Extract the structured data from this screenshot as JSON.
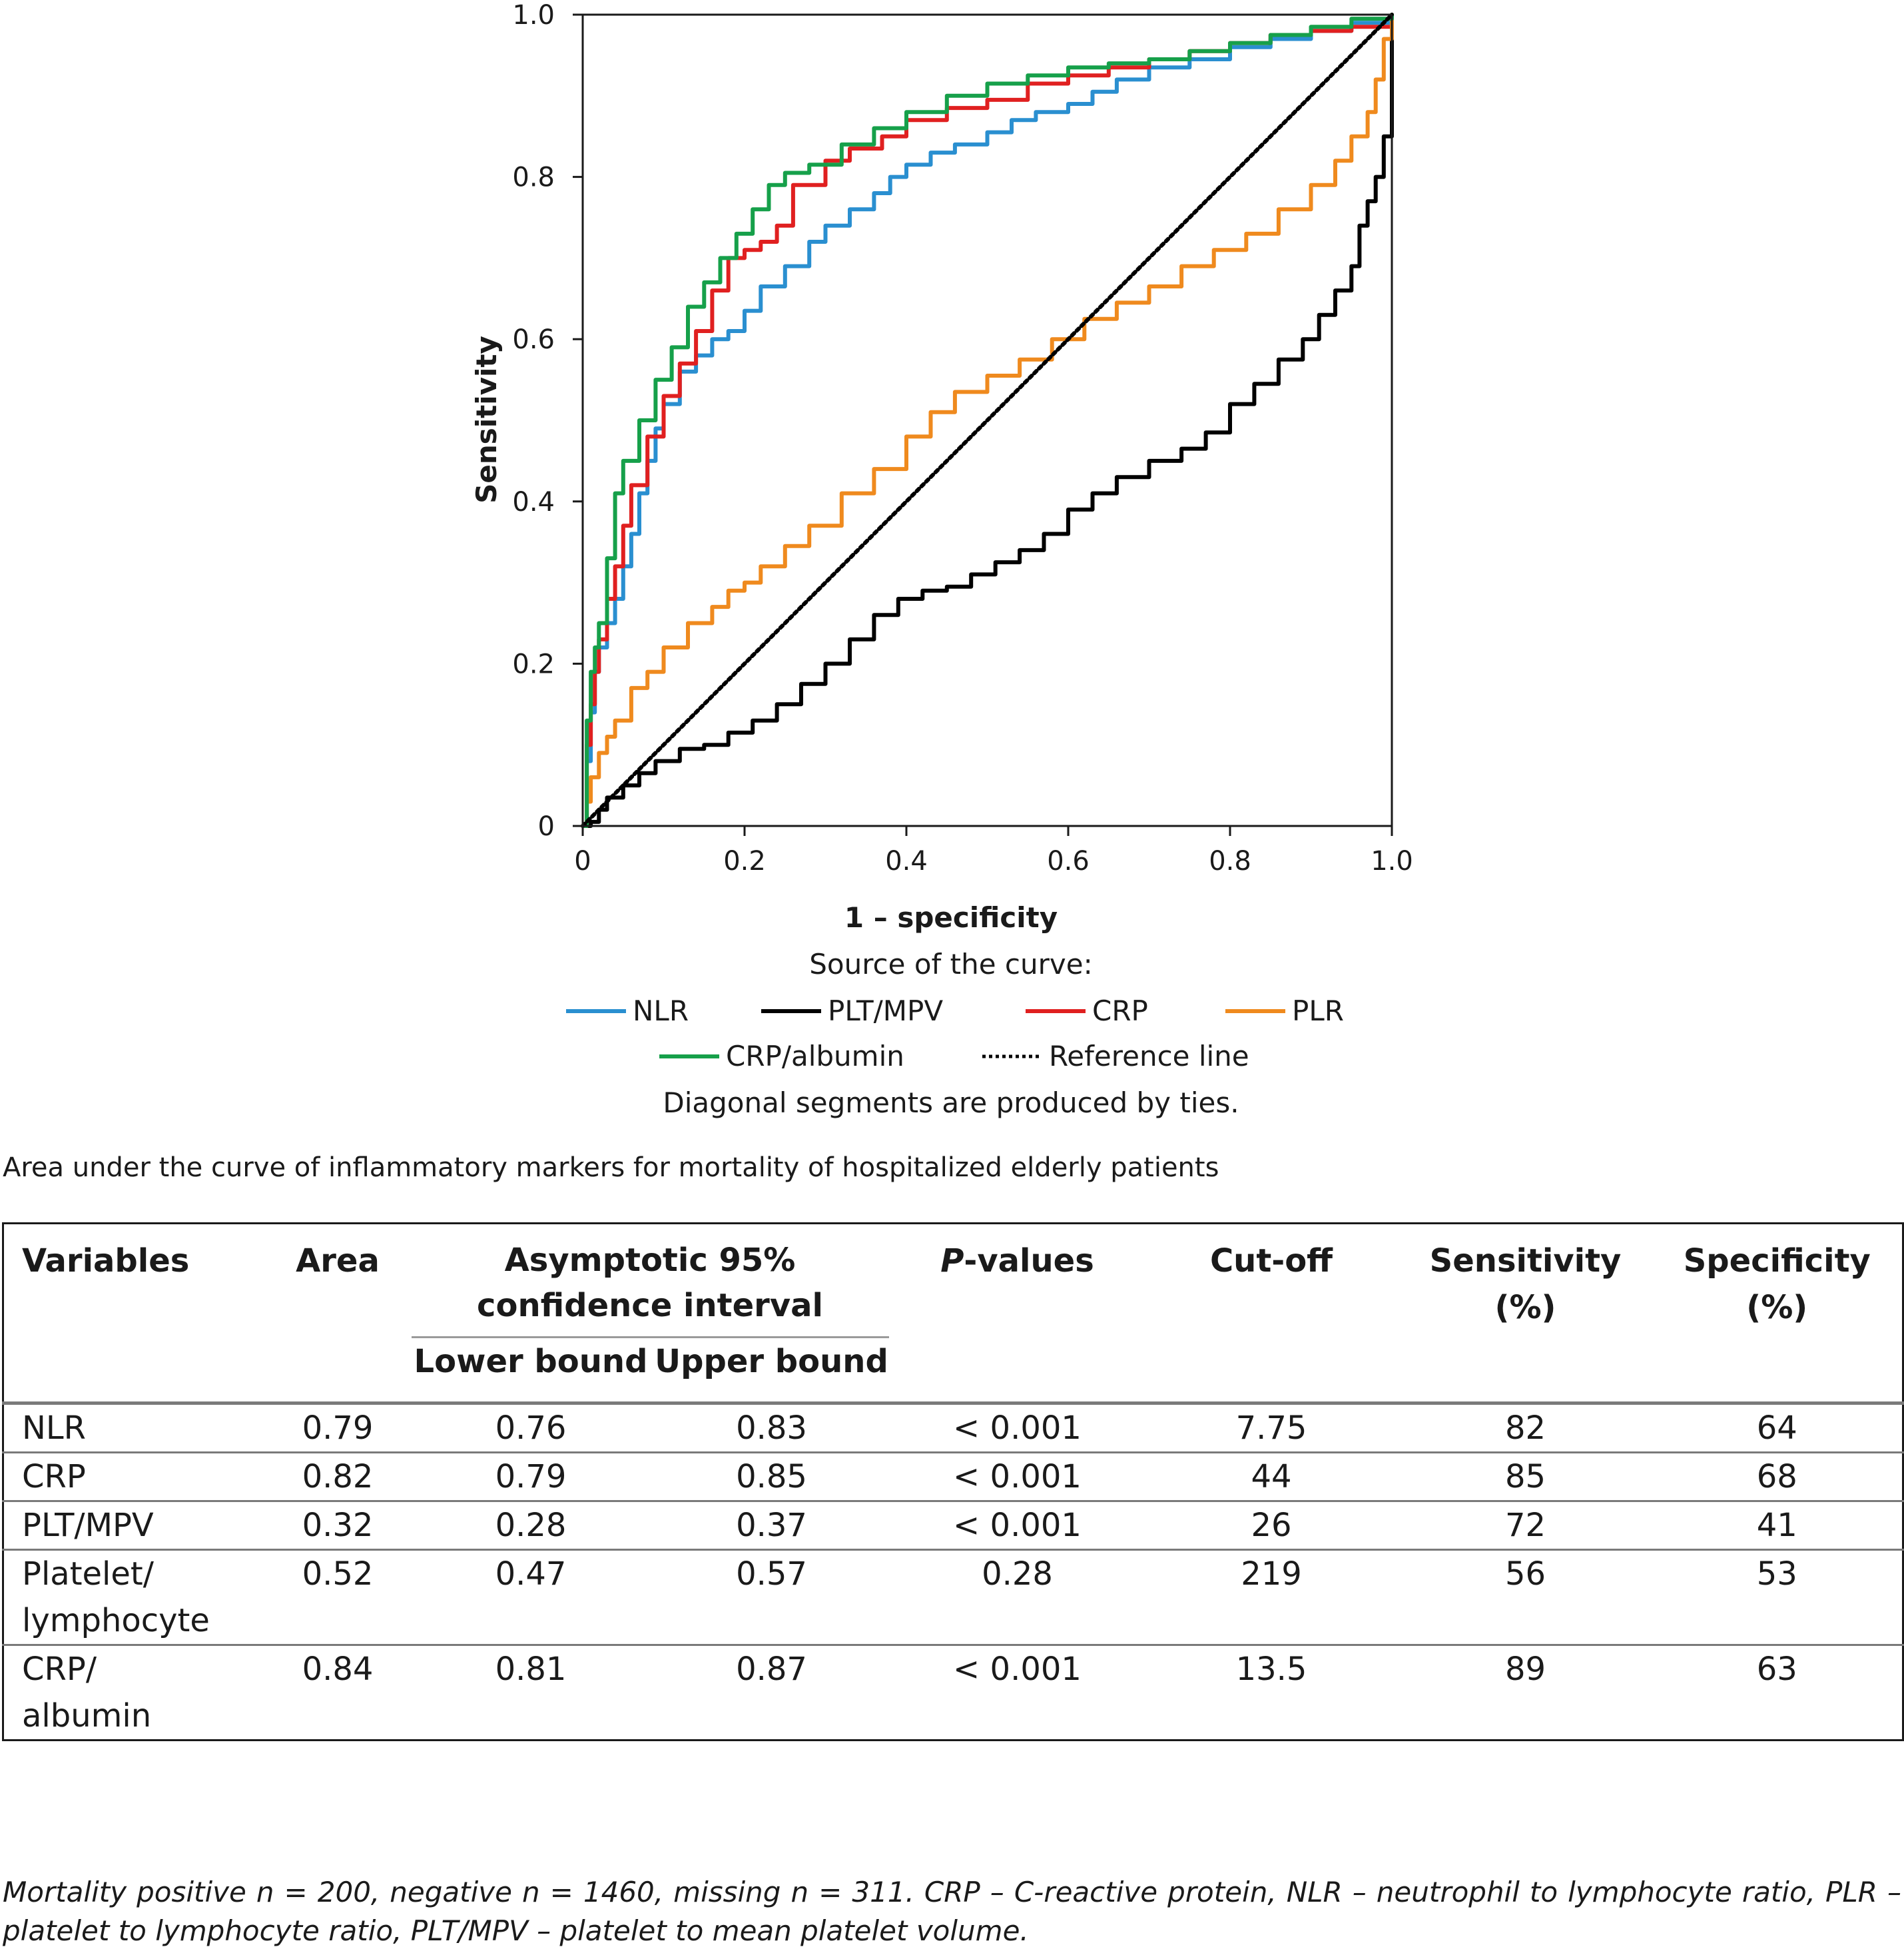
{
  "chart_data": {
    "type": "line",
    "xlabel": "1 – specificity",
    "ylabel": "Sensitivity",
    "xlim": [
      0,
      1
    ],
    "ylim": [
      0,
      1
    ],
    "x_ticks": [
      "0",
      "0.2",
      "0.4",
      "0.6",
      "0.8",
      "1.0"
    ],
    "y_ticks": [
      "0",
      "0.2",
      "0.4",
      "0.6",
      "0.8",
      "1.0"
    ],
    "grid": false,
    "legend_title": "Source of the curve:",
    "legend_note": "Diagonal segments are produced by ties.",
    "legend_position": "bottom",
    "series": [
      {
        "name": "NLR",
        "color": "#2a8fd0",
        "points": [
          [
            0,
            0
          ],
          [
            0.005,
            0.08
          ],
          [
            0.01,
            0.14
          ],
          [
            0.015,
            0.19
          ],
          [
            0.02,
            0.22
          ],
          [
            0.03,
            0.25
          ],
          [
            0.04,
            0.28
          ],
          [
            0.05,
            0.32
          ],
          [
            0.06,
            0.36
          ],
          [
            0.07,
            0.41
          ],
          [
            0.08,
            0.45
          ],
          [
            0.09,
            0.49
          ],
          [
            0.1,
            0.52
          ],
          [
            0.12,
            0.56
          ],
          [
            0.14,
            0.58
          ],
          [
            0.16,
            0.6
          ],
          [
            0.18,
            0.61
          ],
          [
            0.2,
            0.635
          ],
          [
            0.22,
            0.665
          ],
          [
            0.25,
            0.69
          ],
          [
            0.28,
            0.72
          ],
          [
            0.3,
            0.74
          ],
          [
            0.33,
            0.76
          ],
          [
            0.36,
            0.78
          ],
          [
            0.38,
            0.8
          ],
          [
            0.4,
            0.815
          ],
          [
            0.43,
            0.83
          ],
          [
            0.46,
            0.84
          ],
          [
            0.5,
            0.855
          ],
          [
            0.53,
            0.87
          ],
          [
            0.56,
            0.88
          ],
          [
            0.6,
            0.89
          ],
          [
            0.63,
            0.905
          ],
          [
            0.66,
            0.92
          ],
          [
            0.7,
            0.935
          ],
          [
            0.75,
            0.945
          ],
          [
            0.8,
            0.96
          ],
          [
            0.85,
            0.97
          ],
          [
            0.9,
            0.98
          ],
          [
            0.95,
            0.99
          ],
          [
            1.0,
            1.0
          ]
        ]
      },
      {
        "name": "PLT/MPV",
        "color": "#000000",
        "points": [
          [
            0,
            0
          ],
          [
            0.01,
            0.005
          ],
          [
            0.02,
            0.02
          ],
          [
            0.03,
            0.035
          ],
          [
            0.05,
            0.05
          ],
          [
            0.07,
            0.065
          ],
          [
            0.09,
            0.08
          ],
          [
            0.12,
            0.095
          ],
          [
            0.15,
            0.1
          ],
          [
            0.18,
            0.115
          ],
          [
            0.21,
            0.13
          ],
          [
            0.24,
            0.15
          ],
          [
            0.27,
            0.175
          ],
          [
            0.3,
            0.2
          ],
          [
            0.33,
            0.23
          ],
          [
            0.36,
            0.26
          ],
          [
            0.39,
            0.28
          ],
          [
            0.42,
            0.29
          ],
          [
            0.45,
            0.295
          ],
          [
            0.48,
            0.31
          ],
          [
            0.51,
            0.325
          ],
          [
            0.54,
            0.34
          ],
          [
            0.57,
            0.36
          ],
          [
            0.6,
            0.39
          ],
          [
            0.63,
            0.41
          ],
          [
            0.66,
            0.43
          ],
          [
            0.7,
            0.45
          ],
          [
            0.74,
            0.465
          ],
          [
            0.77,
            0.485
          ],
          [
            0.8,
            0.52
          ],
          [
            0.83,
            0.545
          ],
          [
            0.86,
            0.575
          ],
          [
            0.89,
            0.6
          ],
          [
            0.91,
            0.63
          ],
          [
            0.93,
            0.66
          ],
          [
            0.95,
            0.69
          ],
          [
            0.96,
            0.74
          ],
          [
            0.97,
            0.77
          ],
          [
            0.98,
            0.8
          ],
          [
            0.99,
            0.85
          ],
          [
            1.0,
            1.0
          ]
        ]
      },
      {
        "name": "CRP",
        "color": "#e02020",
        "points": [
          [
            0,
            0
          ],
          [
            0.005,
            0.1
          ],
          [
            0.01,
            0.15
          ],
          [
            0.015,
            0.19
          ],
          [
            0.02,
            0.23
          ],
          [
            0.03,
            0.28
          ],
          [
            0.04,
            0.32
          ],
          [
            0.05,
            0.37
          ],
          [
            0.06,
            0.42
          ],
          [
            0.08,
            0.48
          ],
          [
            0.1,
            0.53
          ],
          [
            0.12,
            0.57
          ],
          [
            0.14,
            0.61
          ],
          [
            0.16,
            0.66
          ],
          [
            0.18,
            0.7
          ],
          [
            0.2,
            0.71
          ],
          [
            0.22,
            0.72
          ],
          [
            0.24,
            0.74
          ],
          [
            0.26,
            0.79
          ],
          [
            0.3,
            0.82
          ],
          [
            0.33,
            0.835
          ],
          [
            0.37,
            0.85
          ],
          [
            0.4,
            0.87
          ],
          [
            0.45,
            0.885
          ],
          [
            0.5,
            0.895
          ],
          [
            0.55,
            0.915
          ],
          [
            0.6,
            0.925
          ],
          [
            0.65,
            0.935
          ],
          [
            0.7,
            0.945
          ],
          [
            0.75,
            0.955
          ],
          [
            0.8,
            0.965
          ],
          [
            0.85,
            0.975
          ],
          [
            0.9,
            0.98
          ],
          [
            0.95,
            0.985
          ],
          [
            1.0,
            1.0
          ]
        ]
      },
      {
        "name": "PLR",
        "color": "#ef8a1e",
        "points": [
          [
            0,
            0
          ],
          [
            0.005,
            0.03
          ],
          [
            0.01,
            0.06
          ],
          [
            0.02,
            0.09
          ],
          [
            0.03,
            0.11
          ],
          [
            0.04,
            0.13
          ],
          [
            0.06,
            0.17
          ],
          [
            0.08,
            0.19
          ],
          [
            0.1,
            0.22
          ],
          [
            0.13,
            0.25
          ],
          [
            0.16,
            0.27
          ],
          [
            0.18,
            0.29
          ],
          [
            0.2,
            0.3
          ],
          [
            0.22,
            0.32
          ],
          [
            0.25,
            0.345
          ],
          [
            0.28,
            0.37
          ],
          [
            0.32,
            0.41
          ],
          [
            0.36,
            0.44
          ],
          [
            0.4,
            0.48
          ],
          [
            0.43,
            0.51
          ],
          [
            0.46,
            0.535
          ],
          [
            0.5,
            0.555
          ],
          [
            0.54,
            0.575
          ],
          [
            0.58,
            0.6
          ],
          [
            0.62,
            0.625
          ],
          [
            0.66,
            0.645
          ],
          [
            0.7,
            0.665
          ],
          [
            0.74,
            0.69
          ],
          [
            0.78,
            0.71
          ],
          [
            0.82,
            0.73
          ],
          [
            0.86,
            0.76
          ],
          [
            0.9,
            0.79
          ],
          [
            0.93,
            0.82
          ],
          [
            0.95,
            0.85
          ],
          [
            0.97,
            0.88
          ],
          [
            0.98,
            0.92
          ],
          [
            0.99,
            0.97
          ],
          [
            1.0,
            1.0
          ]
        ]
      },
      {
        "name": "CRP/albumin",
        "color": "#16a04a",
        "points": [
          [
            0,
            0
          ],
          [
            0.005,
            0.13
          ],
          [
            0.01,
            0.19
          ],
          [
            0.015,
            0.22
          ],
          [
            0.02,
            0.25
          ],
          [
            0.03,
            0.33
          ],
          [
            0.04,
            0.41
          ],
          [
            0.05,
            0.45
          ],
          [
            0.07,
            0.5
          ],
          [
            0.09,
            0.55
          ],
          [
            0.11,
            0.59
          ],
          [
            0.13,
            0.64
          ],
          [
            0.15,
            0.67
          ],
          [
            0.17,
            0.7
          ],
          [
            0.19,
            0.73
          ],
          [
            0.21,
            0.76
          ],
          [
            0.23,
            0.79
          ],
          [
            0.25,
            0.805
          ],
          [
            0.28,
            0.815
          ],
          [
            0.32,
            0.84
          ],
          [
            0.36,
            0.86
          ],
          [
            0.4,
            0.88
          ],
          [
            0.45,
            0.9
          ],
          [
            0.5,
            0.915
          ],
          [
            0.55,
            0.925
          ],
          [
            0.6,
            0.935
          ],
          [
            0.65,
            0.94
          ],
          [
            0.7,
            0.945
          ],
          [
            0.75,
            0.955
          ],
          [
            0.8,
            0.965
          ],
          [
            0.85,
            0.975
          ],
          [
            0.9,
            0.985
          ],
          [
            0.95,
            0.995
          ],
          [
            1.0,
            1.0
          ]
        ]
      },
      {
        "name": "Reference line",
        "color": "#000000",
        "dashed": true,
        "points": [
          [
            0,
            0
          ],
          [
            1,
            1
          ]
        ]
      }
    ]
  },
  "table": {
    "caption": "Area under the curve of inflammatory markers for mortality of hospitalized elderly patients",
    "headers": {
      "variables": "Variables",
      "area": "Area",
      "ci_line1": "Asymptotic 95%",
      "ci_line2": "confidence interval",
      "lower": "Lower bound",
      "upper": "Upper bound",
      "p_italic": "P",
      "p_rest": "-values",
      "cutoff": "Cut-off",
      "sens_line1": "Sensitivity",
      "sens_line2": "(%)",
      "spec_line1": "Specificity",
      "spec_line2": "(%)"
    },
    "rows": [
      {
        "var1": "NLR",
        "var2": "",
        "area": "0.79",
        "lower": "0.76",
        "upper": "0.83",
        "p": "< 0.001",
        "cutoff": "7.75",
        "sens": "82",
        "spec": "64"
      },
      {
        "var1": "CRP",
        "var2": "",
        "area": "0.82",
        "lower": "0.79",
        "upper": "0.85",
        "p": "< 0.001",
        "cutoff": "44",
        "sens": "85",
        "spec": "68"
      },
      {
        "var1": "PLT/MPV",
        "var2": "",
        "area": "0.32",
        "lower": "0.28",
        "upper": "0.37",
        "p": "< 0.001",
        "cutoff": "26",
        "sens": "72",
        "spec": "41"
      },
      {
        "var1": "Platelet/",
        "var2": "lymphocyte",
        "area": "0.52",
        "lower": "0.47",
        "upper": "0.57",
        "p": "0.28",
        "cutoff": "219",
        "sens": "56",
        "spec": "53"
      },
      {
        "var1": "CRP/",
        "var2": "albumin",
        "area": "0.84",
        "lower": "0.81",
        "upper": "0.87",
        "p": "< 0.001",
        "cutoff": "13.5",
        "sens": "89",
        "spec": "63"
      }
    ]
  },
  "footnote": "Mortality positive n = 200, negative n = 1460, missing n = 311. CRP – C-reactive protein, NLR – neutrophil to lymphocyte ratio, PLR – platelet to lymphocyte ratio, PLT/MPV – platelet to mean platelet volume."
}
